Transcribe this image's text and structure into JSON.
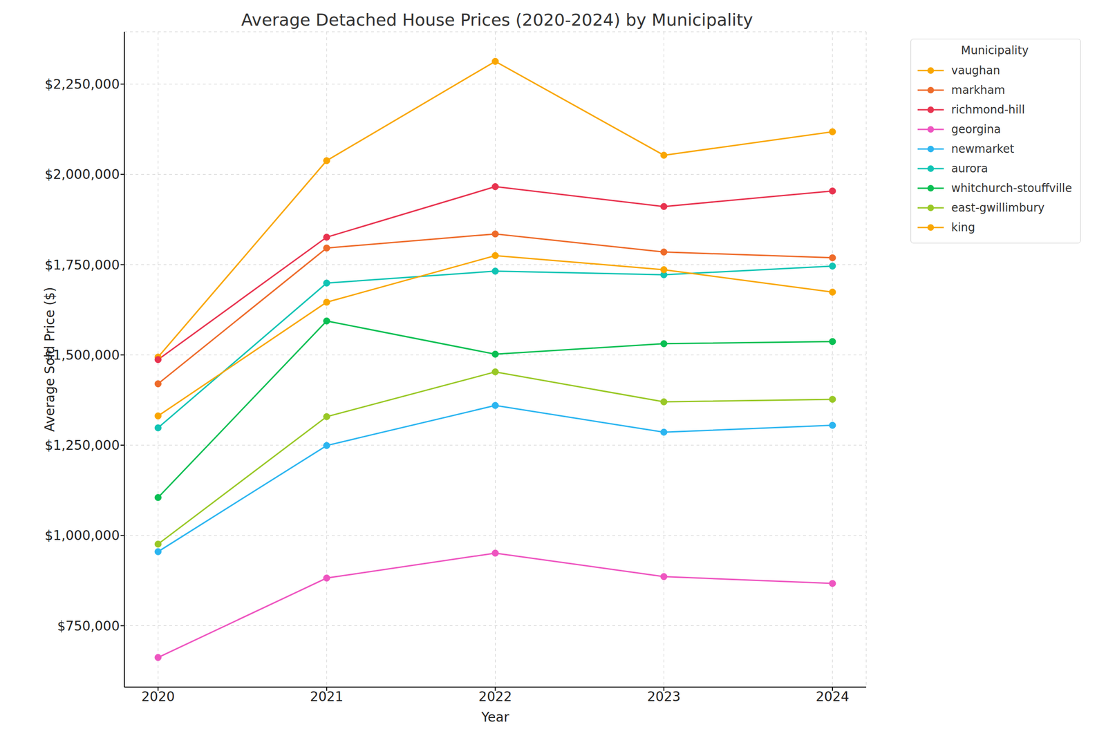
{
  "chart_data": {
    "type": "line",
    "title": "Average Detached House Prices (2020-2024) by Municipality",
    "x_label": "Year",
    "y_label": "Average Sold Price ($)",
    "legend_title": "Municipality",
    "x": [
      2020,
      2021,
      2022,
      2023,
      2024
    ],
    "xlim": [
      2019.8,
      2024.2
    ],
    "xticks": [
      2020,
      2021,
      2022,
      2023,
      2024
    ],
    "ylim": [
      580000,
      2395000
    ],
    "yticks": [
      {
        "value": 750000,
        "label": "$750,000"
      },
      {
        "value": 1000000,
        "label": "$1,000,000"
      },
      {
        "value": 1250000,
        "label": "$1,250,000"
      },
      {
        "value": 1500000,
        "label": "$1,500,000"
      },
      {
        "value": 1750000,
        "label": "$1,750,000"
      },
      {
        "value": 2000000,
        "label": "$2,000,000"
      },
      {
        "value": 2250000,
        "label": "$2,250,000"
      }
    ],
    "grid": true,
    "legend": "right",
    "marker": "circle",
    "series": [
      {
        "name": "vaughan",
        "color": "#f9a602",
        "values": [
          1494000,
          2038000,
          2313000,
          2053000,
          2118000
        ]
      },
      {
        "name": "markham",
        "color": "#ee6b2a",
        "values": [
          1420000,
          1796000,
          1835000,
          1785000,
          1769000
        ]
      },
      {
        "name": "richmond-hill",
        "color": "#e8334f",
        "values": [
          1487000,
          1826000,
          1966000,
          1911000,
          1954000
        ]
      },
      {
        "name": "georgina",
        "color": "#ee55c0",
        "values": [
          662000,
          882000,
          951000,
          886000,
          867000
        ]
      },
      {
        "name": "newmarket",
        "color": "#2bb5f0",
        "values": [
          955000,
          1249000,
          1360000,
          1286000,
          1305000
        ]
      },
      {
        "name": "aurora",
        "color": "#10c4b4",
        "values": [
          1298000,
          1699000,
          1732000,
          1722000,
          1746000
        ]
      },
      {
        "name": "whitchurch-stouffville",
        "color": "#0abf53",
        "values": [
          1105000,
          1594000,
          1502000,
          1531000,
          1537000
        ]
      },
      {
        "name": "east-gwillimbury",
        "color": "#99c826",
        "values": [
          976000,
          1329000,
          1453000,
          1370000,
          1377000
        ]
      },
      {
        "name": "king",
        "color": "#f9a602",
        "values": [
          1331000,
          1646000,
          1775000,
          1736000,
          1674000
        ]
      }
    ]
  }
}
